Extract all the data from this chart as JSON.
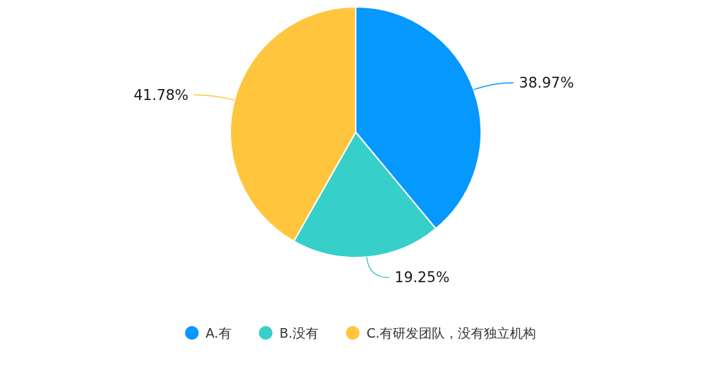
{
  "chart_data": {
    "type": "pie",
    "categories": [
      "A.有",
      "B.没有",
      "C.有研发团队，没有独立机构"
    ],
    "values": [
      38.97,
      19.25,
      41.78
    ],
    "colors": [
      "#0598fe",
      "#36cfc9",
      "#ffc53d"
    ],
    "value_labels": [
      "38.97%",
      "19.25%",
      "41.78%"
    ],
    "legend": "bottom"
  }
}
